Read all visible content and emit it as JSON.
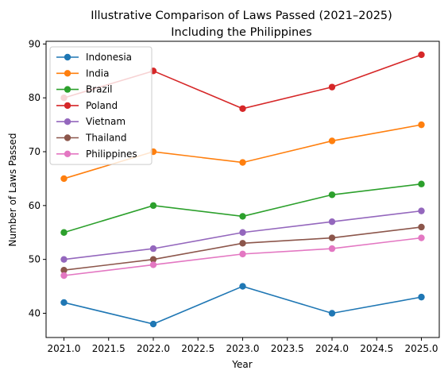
{
  "chart_data": {
    "type": "line",
    "title_line1": "Illustrative Comparison of Laws Passed (2021–2025)",
    "title_line2": "Including the Philippines",
    "xlabel": "Year",
    "ylabel": "Number of Laws Passed",
    "x": [
      2021,
      2022,
      2023,
      2024,
      2025
    ],
    "xticks": [
      "2021.0",
      "2021.5",
      "2022.0",
      "2022.5",
      "2023.0",
      "2023.5",
      "2024.0",
      "2024.5",
      "2025.0"
    ],
    "xtick_values": [
      2021.0,
      2021.5,
      2022.0,
      2022.5,
      2023.0,
      2023.5,
      2024.0,
      2024.5,
      2025.0
    ],
    "yticks": [
      "40",
      "50",
      "60",
      "70",
      "80",
      "90"
    ],
    "ytick_values": [
      40,
      50,
      60,
      70,
      80,
      90
    ],
    "xlim": [
      2020.8,
      2025.2
    ],
    "ylim": [
      35.5,
      90.5
    ],
    "grid": false,
    "legend_position": "top-left",
    "series": [
      {
        "name": "Indonesia",
        "color": "#1f77b4",
        "values": [
          42,
          38,
          45,
          40,
          43
        ]
      },
      {
        "name": "India",
        "color": "#ff7f0e",
        "values": [
          65,
          70,
          68,
          72,
          75
        ]
      },
      {
        "name": "Brazil",
        "color": "#2ca02c",
        "values": [
          55,
          60,
          58,
          62,
          64
        ]
      },
      {
        "name": "Poland",
        "color": "#d62728",
        "values": [
          80,
          85,
          78,
          82,
          88
        ]
      },
      {
        "name": "Vietnam",
        "color": "#9467bd",
        "values": [
          50,
          52,
          55,
          57,
          59
        ]
      },
      {
        "name": "Thailand",
        "color": "#8c564b",
        "values": [
          48,
          50,
          53,
          54,
          56
        ]
      },
      {
        "name": "Philippines",
        "color": "#e377c2",
        "values": [
          47,
          49,
          51,
          52,
          54
        ]
      }
    ]
  }
}
